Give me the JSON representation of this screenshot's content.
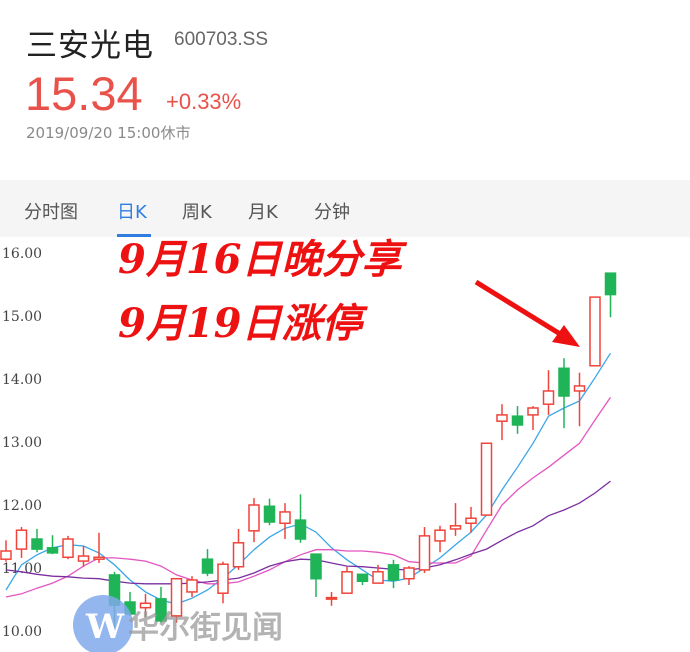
{
  "header": {
    "name": "三安光电",
    "code": "600703.SS",
    "price": "15.34",
    "change": "+0.33%",
    "time": "2019/09/20 15:00休市"
  },
  "tabs": [
    {
      "label": "分时图",
      "active": false
    },
    {
      "label": "日K",
      "active": true
    },
    {
      "label": "周K",
      "active": false
    },
    {
      "label": "月K",
      "active": false
    },
    {
      "label": "分钟",
      "active": false
    }
  ],
  "annotations": [
    "9月16日晚分享",
    "9月19日涨停"
  ],
  "watermark": "华尔街见闻",
  "colors": {
    "up": "#f0443a",
    "down": "#1fb457",
    "ma5": "#3aa6e8",
    "ma10": "#e455c0",
    "ma20": "#7b2fa0",
    "accent": "#2f7de1"
  },
  "chart_data": {
    "type": "candlestick",
    "ylim": [
      9.8,
      16.25
    ],
    "yticks": [
      "16.00",
      "15.00",
      "14.00",
      "13.00",
      "12.00",
      "11.00",
      "10.00"
    ],
    "ohlc": [
      [
        11.14,
        11.27,
        11.44,
        11.1
      ],
      [
        11.3,
        11.6,
        11.65,
        11.16
      ],
      [
        11.46,
        11.3,
        11.62,
        11.25
      ],
      [
        11.32,
        11.24,
        11.52,
        11.22
      ],
      [
        11.17,
        11.46,
        11.51,
        11.14
      ],
      [
        11.11,
        11.19,
        11.35,
        11.02
      ],
      [
        11.14,
        11.17,
        11.56,
        11.08
      ],
      [
        10.89,
        10.41,
        10.94,
        10.05
      ],
      [
        10.46,
        10.27,
        10.62,
        10.24
      ],
      [
        10.37,
        10.44,
        10.59,
        10.22
      ],
      [
        10.51,
        10.16,
        10.7,
        10.13
      ],
      [
        10.24,
        10.83,
        10.84,
        10.13
      ],
      [
        10.62,
        10.81,
        10.87,
        10.54
      ],
      [
        11.14,
        10.92,
        11.3,
        10.87
      ],
      [
        10.6,
        11.06,
        11.1,
        10.44
      ],
      [
        11.02,
        11.4,
        11.62,
        10.97
      ],
      [
        11.59,
        12.0,
        12.11,
        11.41
      ],
      [
        11.98,
        11.73,
        12.1,
        11.68
      ],
      [
        11.71,
        11.89,
        12.03,
        11.46
      ],
      [
        11.76,
        11.46,
        12.17,
        11.4
      ],
      [
        11.22,
        10.83,
        11.22,
        10.54
      ],
      [
        10.52,
        10.53,
        10.62,
        10.4
      ],
      [
        10.6,
        10.94,
        11.02,
        10.6
      ],
      [
        10.9,
        10.79,
        10.9,
        10.73
      ],
      [
        10.76,
        10.94,
        11.05,
        10.76
      ],
      [
        11.05,
        10.81,
        11.13,
        10.68
      ],
      [
        10.83,
        11.0,
        11.03,
        10.73
      ],
      [
        10.97,
        11.51,
        11.65,
        10.92
      ],
      [
        11.43,
        11.6,
        11.67,
        11.25
      ],
      [
        11.62,
        11.67,
        12.03,
        11.51
      ],
      [
        11.71,
        11.79,
        11.97,
        11.56
      ],
      [
        11.84,
        12.98,
        12.98,
        11.84
      ],
      [
        13.33,
        13.43,
        13.6,
        13.03
      ],
      [
        13.41,
        13.27,
        13.57,
        13.13
      ],
      [
        13.43,
        13.54,
        13.57,
        13.19
      ],
      [
        13.6,
        13.81,
        14.14,
        13.43
      ],
      [
        14.17,
        13.73,
        14.33,
        13.22
      ],
      [
        13.81,
        13.89,
        14.1,
        13.25
      ],
      [
        14.21,
        15.3,
        15.3,
        14.21
      ],
      [
        15.68,
        15.34,
        15.68,
        14.98
      ]
    ],
    "ma5": [
      10.65,
      11.05,
      11.21,
      11.32,
      11.37,
      11.35,
      11.24,
      11.05,
      10.81,
      10.62,
      10.49,
      10.43,
      10.52,
      10.65,
      10.84,
      11.05,
      11.29,
      11.49,
      11.63,
      11.7,
      11.57,
      11.32,
      11.13,
      10.97,
      10.81,
      10.79,
      10.84,
      11.0,
      11.16,
      11.37,
      11.57,
      11.84,
      12.24,
      12.6,
      12.98,
      13.41,
      13.54,
      13.65,
      14.02,
      14.41
    ],
    "ma10": [
      10.54,
      10.59,
      10.68,
      10.76,
      10.87,
      11.03,
      11.16,
      11.16,
      11.14,
      11.11,
      11.03,
      10.89,
      10.81,
      10.75,
      10.75,
      10.78,
      10.87,
      10.97,
      11.1,
      11.21,
      11.29,
      11.29,
      11.27,
      11.27,
      11.25,
      11.21,
      11.1,
      11.08,
      11.08,
      11.08,
      11.19,
      11.6,
      12.0,
      12.24,
      12.43,
      12.6,
      12.79,
      12.98,
      13.35,
      13.71
    ],
    "ma20": [
      10.97,
      10.94,
      10.9,
      10.87,
      10.86,
      10.84,
      10.83,
      10.79,
      10.76,
      10.75,
      10.75,
      10.75,
      10.76,
      10.78,
      10.81,
      10.84,
      10.92,
      11.03,
      11.1,
      11.14,
      11.13,
      11.08,
      11.03,
      11.02,
      11.0,
      10.98,
      10.97,
      11.0,
      11.05,
      11.13,
      11.22,
      11.3,
      11.44,
      11.57,
      11.67,
      11.83,
      11.92,
      12.03,
      12.19,
      12.38
    ]
  }
}
